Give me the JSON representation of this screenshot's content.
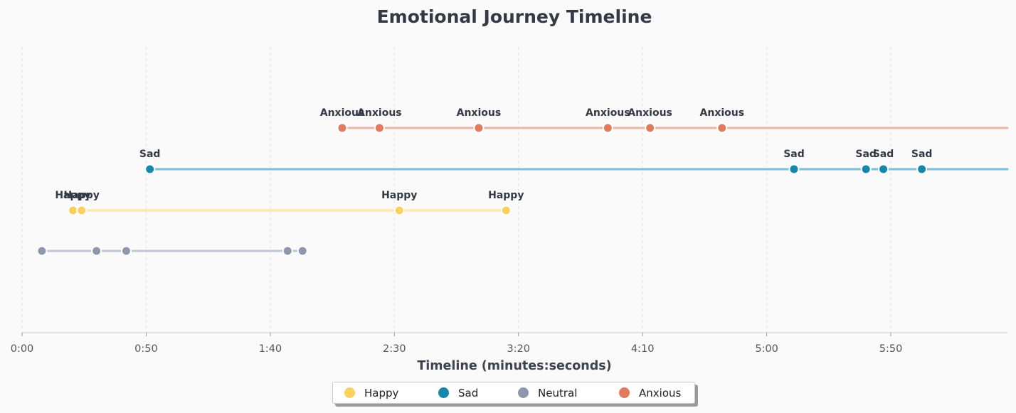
{
  "chart_data": {
    "type": "scatter",
    "title": "Emotional Journey Timeline",
    "xlabel": "Timeline (minutes:seconds)",
    "ylabel": "",
    "xlim": [
      0,
      397
    ],
    "x_unit": "seconds",
    "x_ticks": [
      0,
      50,
      100,
      150,
      200,
      250,
      300,
      350
    ],
    "x_tick_labels": [
      "0:00",
      "0:50",
      "1:40",
      "2:30",
      "3:20",
      "4:10",
      "5:00",
      "5:50"
    ],
    "grid": "vertical dashed",
    "legend_position": "bottom-center",
    "series": [
      {
        "name": "Happy",
        "color": "#fcd05f",
        "line_color": "#fde6a6",
        "show_labels": true,
        "x": [
          20.5,
          24,
          152,
          195
        ],
        "y": [
          0,
          0,
          0,
          0
        ],
        "point_labels": [
          "Happy",
          "Happy",
          "Happy",
          "Happy"
        ],
        "extend_line_to_end": false
      },
      {
        "name": "Sad",
        "color": "#1487ab",
        "line_color": "#7cbdd8",
        "show_labels": true,
        "x": [
          51.5,
          311,
          340,
          347,
          362.5
        ],
        "y": [
          1,
          1,
          1,
          1,
          1
        ],
        "point_labels": [
          "Sad",
          "Sad",
          "Sad",
          "Sad",
          "Sad"
        ],
        "extend_line_to_end": true
      },
      {
        "name": "Neutral",
        "color": "#8e98ad",
        "line_color": "#c1c7d1",
        "show_labels": false,
        "x": [
          8,
          30,
          42,
          107,
          113
        ],
        "y": [
          -1,
          -1,
          -1,
          -1,
          -1
        ],
        "point_labels": [],
        "extend_line_to_end": false
      },
      {
        "name": "Anxious",
        "color": "#e07b5d",
        "line_color": "#efb3a3",
        "show_labels": true,
        "x": [
          129,
          144,
          184,
          236,
          253,
          282
        ],
        "y": [
          2,
          2,
          2,
          2,
          2,
          2
        ],
        "point_labels": [
          "Anxious",
          "Anxious",
          "Anxious",
          "Anxious",
          "Anxious",
          "Anxious"
        ],
        "extend_line_to_end": true
      }
    ]
  }
}
